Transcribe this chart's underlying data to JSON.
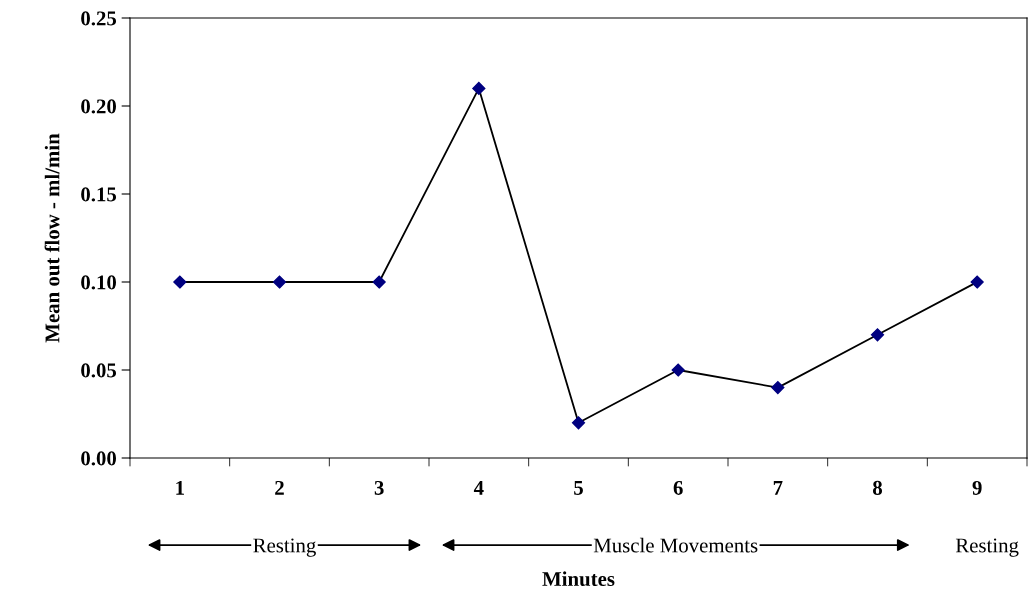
{
  "chart_data": {
    "type": "line",
    "xlabel": "Minutes",
    "ylabel": "Mean out flow - ml/min",
    "categories": [
      "1",
      "2",
      "3",
      "4",
      "5",
      "6",
      "7",
      "8",
      "9"
    ],
    "series": [
      {
        "color": "#000080",
        "values": [
          0.1,
          0.1,
          0.1,
          0.21,
          0.02,
          0.05,
          0.04,
          0.07,
          0.1
        ]
      }
    ],
    "ylim": [
      0,
      0.25
    ],
    "yticks": [
      {
        "value": 0,
        "label": "0.00"
      },
      {
        "value": 0.05,
        "label": "0.05"
      },
      {
        "value": 0.1,
        "label": "0.10"
      },
      {
        "value": 0.15,
        "label": "0.15"
      },
      {
        "value": 0.2,
        "label": "0.20"
      },
      {
        "value": 0.25,
        "label": "0.25"
      }
    ],
    "marker": "diamond",
    "line_style": "solid",
    "grid": false,
    "legend": false,
    "annotations": [
      "Resting",
      "Muscle Movements",
      "Resting"
    ]
  }
}
